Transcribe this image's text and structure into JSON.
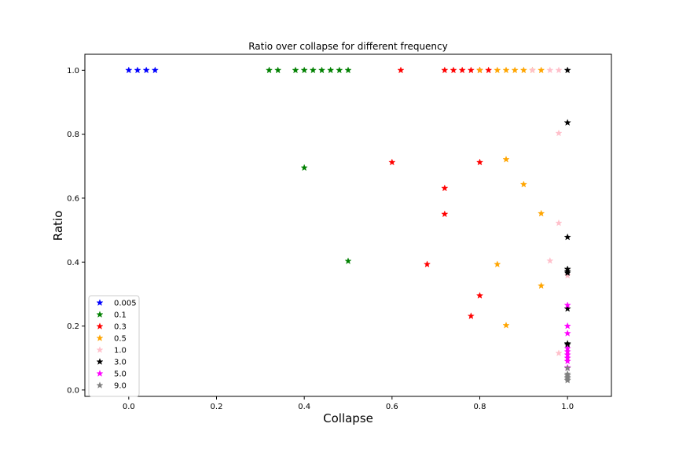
{
  "chart_data": {
    "type": "scatter",
    "title": "Ratio over collapse for different frequency",
    "xlabel": "Collapse",
    "ylabel": "Ratio",
    "xlim": [
      -0.1,
      1.1
    ],
    "ylim": [
      -0.02,
      1.05
    ],
    "xticks": [
      "0.0",
      "0.2",
      "0.4",
      "0.6",
      "0.8",
      "1.0"
    ],
    "yticks": [
      "0.0",
      "0.2",
      "0.4",
      "0.6",
      "0.8",
      "1.0"
    ],
    "grid": false,
    "legend_position": "lower-left",
    "marker": "star",
    "series": [
      {
        "name": "0.005",
        "color": "#0000ff",
        "points": [
          [
            0.0,
            1.0
          ],
          [
            0.02,
            1.0
          ],
          [
            0.04,
            1.0
          ],
          [
            0.06,
            1.0
          ]
        ]
      },
      {
        "name": "0.1",
        "color": "#008000",
        "points": [
          [
            0.32,
            1.0
          ],
          [
            0.34,
            1.0
          ],
          [
            0.38,
            1.0
          ],
          [
            0.4,
            1.0
          ],
          [
            0.42,
            1.0
          ],
          [
            0.44,
            1.0
          ],
          [
            0.46,
            1.0
          ],
          [
            0.48,
            1.0
          ],
          [
            0.5,
            1.0
          ],
          [
            0.4,
            0.695
          ],
          [
            0.5,
            0.403
          ]
        ]
      },
      {
        "name": "0.3",
        "color": "#ff0000",
        "points": [
          [
            0.62,
            1.0
          ],
          [
            0.72,
            1.0
          ],
          [
            0.74,
            1.0
          ],
          [
            0.76,
            1.0
          ],
          [
            0.78,
            1.0
          ],
          [
            0.8,
            1.0
          ],
          [
            0.82,
            1.0
          ],
          [
            0.6,
            0.712
          ],
          [
            0.8,
            0.712
          ],
          [
            0.72,
            0.631
          ],
          [
            0.72,
            0.55
          ],
          [
            0.68,
            0.393
          ],
          [
            0.8,
            0.295
          ],
          [
            0.78,
            0.231
          ]
        ]
      },
      {
        "name": "0.5",
        "color": "#ffa500",
        "points": [
          [
            0.8,
            1.0
          ],
          [
            0.84,
            1.0
          ],
          [
            0.86,
            1.0
          ],
          [
            0.88,
            1.0
          ],
          [
            0.9,
            1.0
          ],
          [
            0.92,
            1.0
          ],
          [
            0.94,
            1.0
          ],
          [
            0.86,
            0.721
          ],
          [
            0.9,
            0.643
          ],
          [
            0.94,
            0.552
          ],
          [
            0.84,
            0.393
          ],
          [
            0.94,
            0.326
          ],
          [
            0.86,
            0.202
          ]
        ]
      },
      {
        "name": "1.0",
        "color": "#ffc0cb",
        "points": [
          [
            0.92,
            1.0
          ],
          [
            0.96,
            1.0
          ],
          [
            0.98,
            1.0
          ],
          [
            0.98,
            0.803
          ],
          [
            0.98,
            0.522
          ],
          [
            0.96,
            0.404
          ],
          [
            1.0,
            0.358
          ],
          [
            0.98,
            0.115
          ]
        ]
      },
      {
        "name": "3.0",
        "color": "#000000",
        "points": [
          [
            1.0,
            1.0
          ],
          [
            1.0,
            0.836
          ],
          [
            1.0,
            0.478
          ],
          [
            1.0,
            0.378
          ],
          [
            1.0,
            0.371
          ],
          [
            1.0,
            0.366
          ],
          [
            1.0,
            0.254
          ],
          [
            1.0,
            0.145
          ],
          [
            1.0,
            0.142
          ]
        ]
      },
      {
        "name": "5.0",
        "color": "#ff00ff",
        "points": [
          [
            1.0,
            0.265
          ],
          [
            1.0,
            0.2
          ],
          [
            1.0,
            0.177
          ],
          [
            1.0,
            0.13
          ],
          [
            1.0,
            0.12
          ],
          [
            1.0,
            0.11
          ],
          [
            1.0,
            0.1
          ],
          [
            1.0,
            0.09
          ],
          [
            1.0,
            0.07
          ]
        ]
      },
      {
        "name": "9.0",
        "color": "#808080",
        "points": [
          [
            1.0,
            0.068
          ],
          [
            1.0,
            0.05
          ],
          [
            1.0,
            0.045
          ],
          [
            1.0,
            0.04
          ],
          [
            1.0,
            0.035
          ],
          [
            1.0,
            0.03
          ]
        ]
      }
    ]
  }
}
